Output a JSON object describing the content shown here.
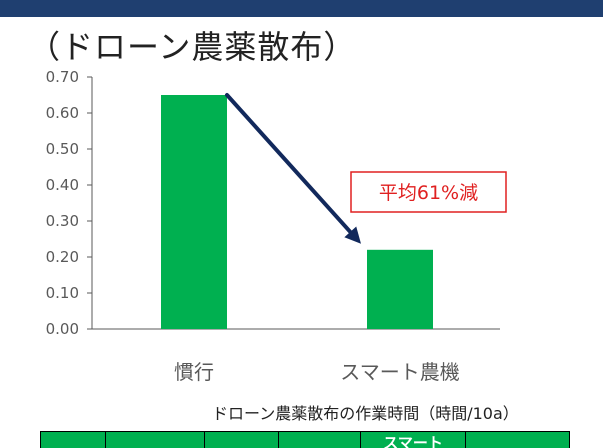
{
  "heading": "（ドローン農薬散布）",
  "colors": {
    "band": "#1f3f70",
    "bar": "#00b050",
    "arrow": "#12295c",
    "callout": "#e02020",
    "axis": "#595959"
  },
  "chart_data": {
    "type": "bar",
    "categories": [
      "慣行",
      "スマート農機"
    ],
    "values": [
      0.65,
      0.22
    ],
    "ylim": [
      0,
      0.7
    ],
    "yticks": [
      "0.00",
      "0.10",
      "0.20",
      "0.30",
      "0.40",
      "0.50",
      "0.60",
      "0.70"
    ],
    "grid": false,
    "annotation": "平均61%減",
    "caption": "ドローン農薬散布の作業時間（時間/10a）"
  },
  "table": {
    "header_cells": [
      "",
      "",
      "",
      "",
      "スマート",
      ""
    ]
  }
}
